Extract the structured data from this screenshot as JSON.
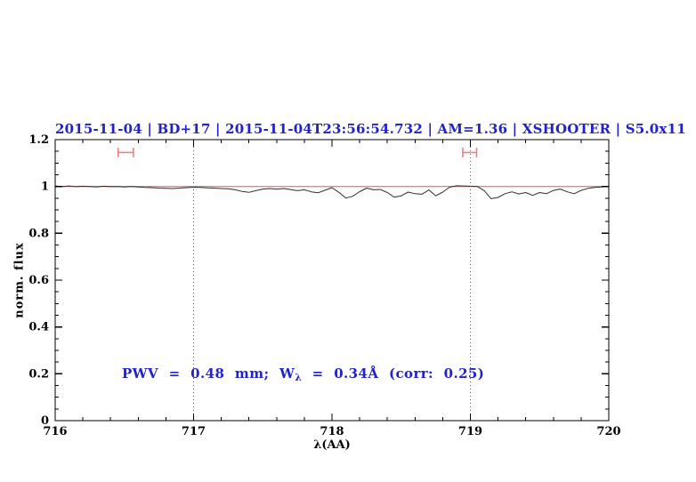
{
  "figure": {
    "title": "2015-11-04 | BD+17 | 2015-11-04T23:56:54.732 | AM=1.36 | XSHOOTER | S5.0x11"
  },
  "colors": {
    "title_blue": "#2222cc",
    "annotation_blue": "#2222cc",
    "continuum_red": "#f08080",
    "marker_red": "#f08080",
    "spectrum_line": "#2e2e2e",
    "axis_black": "#000000",
    "dotted_line_gray": "#555555"
  },
  "annotation": {
    "prefix": "PWV = 0.48 mm; W",
    "sub": "λ",
    "suffix": " = 0.34Å (corr: 0.25)"
  },
  "chart_data": {
    "type": "line",
    "title": "2015-11-04 | BD+17 | 2015-11-04T23:56:54.732 | AM=1.36 | XSHOOTER | S5.0x11",
    "xlabel": "λ(AA)",
    "ylabel": "norm. flux",
    "xlim": [
      716,
      720
    ],
    "ylim": [
      0,
      1.2
    ],
    "x_tick_labels": [
      "716",
      "717",
      "718",
      "719",
      "720"
    ],
    "x_major_ticks": [
      716,
      717,
      718,
      719,
      720
    ],
    "x_minor_step": 0.2,
    "y_tick_labels": [
      "0",
      "0.2",
      "0.4",
      "0.6",
      "0.8",
      "1",
      "1.2"
    ],
    "y_major_ticks": [
      0,
      0.2,
      0.4,
      0.6,
      0.8,
      1,
      1.2
    ],
    "y_minor_step": 0.05,
    "grid": false,
    "dotted_vlines": [
      717,
      719
    ],
    "continuum_level": 1.0,
    "errorbar_markers": [
      {
        "x": 716.51,
        "y": 1.145,
        "halfwidth_aa": 0.055,
        "cap_halfheight_flux": 0.021
      },
      {
        "x": 718.995,
        "y": 1.145,
        "halfwidth_aa": 0.05,
        "cap_halfheight_flux": 0.021
      }
    ],
    "series": [
      {
        "name": "normalized spectrum",
        "x": [
          716.0,
          716.05,
          716.1,
          716.15,
          716.2,
          716.25,
          716.3,
          716.35,
          716.4,
          716.45,
          716.5,
          716.55,
          716.6,
          716.65,
          716.7,
          716.75,
          716.8,
          716.85,
          716.9,
          716.95,
          717.0,
          717.05,
          717.1,
          717.15,
          717.2,
          717.25,
          717.3,
          717.35,
          717.4,
          717.45,
          717.5,
          717.55,
          717.6,
          717.65,
          717.7,
          717.75,
          717.8,
          717.85,
          717.9,
          717.95,
          718.0,
          718.05,
          718.1,
          718.15,
          718.2,
          718.25,
          718.3,
          718.35,
          718.4,
          718.45,
          718.5,
          718.55,
          718.6,
          718.65,
          718.7,
          718.75,
          718.8,
          718.85,
          718.9,
          718.95,
          719.0,
          719.05,
          719.1,
          719.15,
          719.2,
          719.25,
          719.3,
          719.35,
          719.4,
          719.45,
          719.5,
          719.55,
          719.6,
          719.65,
          719.7,
          719.75,
          719.8,
          719.85,
          719.9,
          719.95,
          720.0
        ],
        "y": [
          1.002,
          1.0,
          1.002,
          0.999,
          1.001,
          1.0,
          0.998,
          1.001,
          0.999,
          1.0,
          0.998,
          1.0,
          0.998,
          0.996,
          0.995,
          0.993,
          0.992,
          0.991,
          0.993,
          0.995,
          0.997,
          0.996,
          0.994,
          0.993,
          0.991,
          0.99,
          0.986,
          0.979,
          0.975,
          0.982,
          0.989,
          0.991,
          0.988,
          0.991,
          0.987,
          0.982,
          0.986,
          0.977,
          0.973,
          0.984,
          0.995,
          0.975,
          0.95,
          0.958,
          0.978,
          0.993,
          0.986,
          0.987,
          0.974,
          0.954,
          0.96,
          0.976,
          0.969,
          0.967,
          0.985,
          0.96,
          0.976,
          0.997,
          1.003,
          1.002,
          1.001,
          1.0,
          0.982,
          0.948,
          0.953,
          0.969,
          0.977,
          0.968,
          0.974,
          0.962,
          0.974,
          0.969,
          0.983,
          0.989,
          0.977,
          0.969,
          0.983,
          0.992,
          0.996,
          0.998,
          1.001
        ]
      }
    ],
    "legend": null,
    "annotation_text": "PWV = 0.48 mm; Wλ = 0.34Å (corr: 0.25)"
  }
}
